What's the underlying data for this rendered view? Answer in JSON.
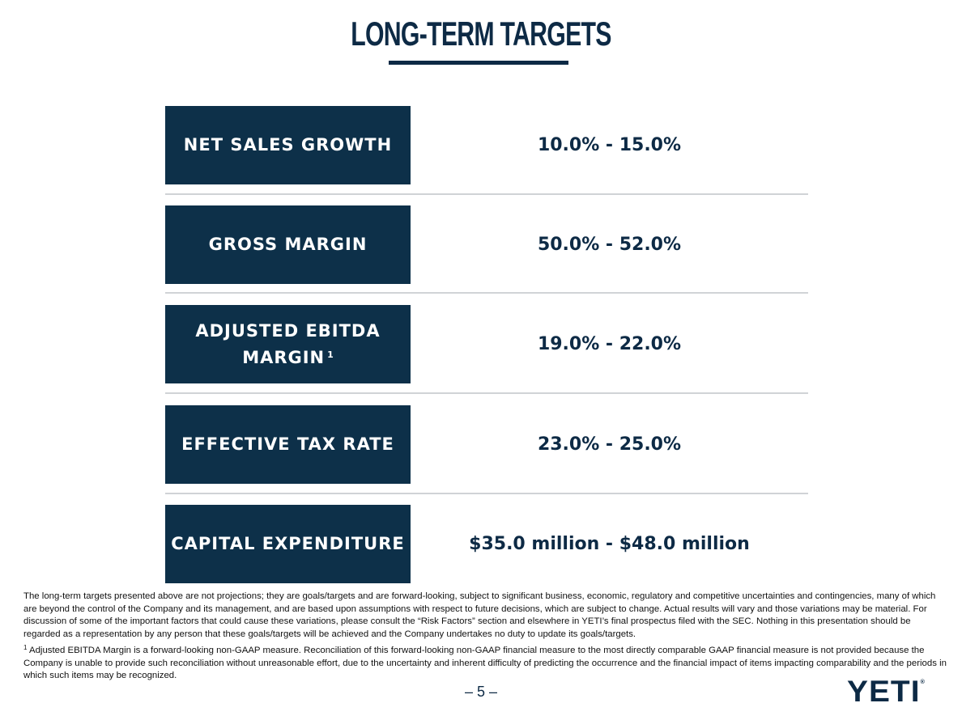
{
  "page": {
    "title": "LONG-TERM TARGETS",
    "page_number": "– 5 –",
    "logo": "YETI",
    "logo_mark": "®"
  },
  "targets": [
    {
      "label": "NET SALES GROWTH",
      "value": "10.0% - 15.0%"
    },
    {
      "label": "GROSS MARGIN",
      "value": "50.0% - 52.0%"
    },
    {
      "label_line1": "ADJUSTED EBITDA",
      "label_line2": "MARGIN",
      "footnote_ref": "1",
      "value": "19.0% - 22.0%"
    },
    {
      "label": "EFFECTIVE TAX RATE",
      "value": "23.0% - 25.0%"
    },
    {
      "label": "CAPITAL EXPENDITURE",
      "value": "$35.0 million - $48.0 million"
    }
  ],
  "footnotes": {
    "disclaimer": "The long-term targets presented above are not projections; they are goals/targets and are forward-looking, subject to significant business, economic, regulatory and competitive uncertainties and contingencies, many of which are beyond the control of the Company and its management, and are based upon assumptions with respect to future decisions, which are subject to change. Actual results will vary and those variations may be material. For discussion of some of the important factors that could cause these variations, please consult the “Risk Factors” section and elsewhere in YETI’s final prospectus filed with the SEC. Nothing in this presentation should be regarded as a representation by any person that these goals/targets will be achieved and the Company undertakes no duty to update its goals/targets.",
    "note1_marker": "1",
    "note1": "Adjusted EBITDA Margin is a forward-looking non-GAAP measure.  Reconciliation of this forward-looking non-GAAP financial measure to the most directly comparable GAAP financial measure is not provided because the Company is unable to provide such reconciliation without unreasonable effort, due to the uncertainty and inherent difficulty of predicting the occurrence and the financial impact of items impacting comparability and the periods in which such items may be recognized."
  }
}
